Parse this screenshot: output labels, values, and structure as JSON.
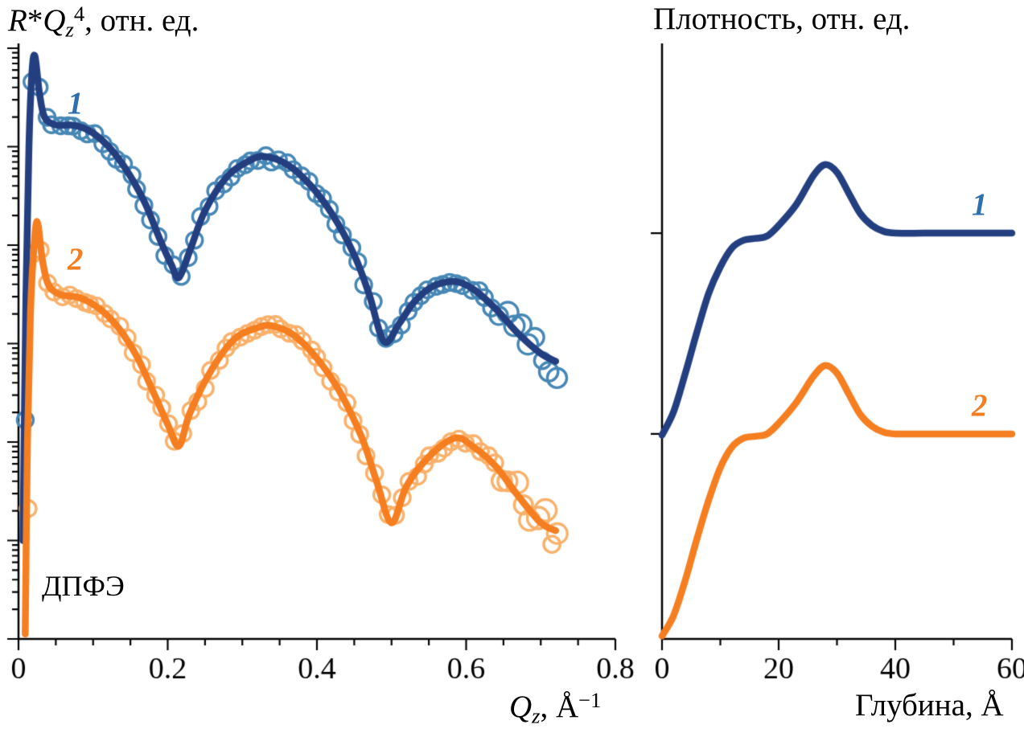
{
  "titles": {
    "left_y": {
      "r": "R",
      "star": "*",
      "q": "Q",
      "sub": "z",
      "sup": "4",
      "rest": ", отн. ед."
    },
    "left_x": {
      "q": "Q",
      "sub": "z",
      "rest": ", Å",
      "sup": "−1"
    },
    "right_y": "Плотность, отн. ед.",
    "right_x": "Глубина, Å"
  },
  "colors": {
    "axis": "#000000",
    "navy_line": "#243f80",
    "orange_line": "#f57e20",
    "blue_marker": "#4787b5",
    "orange_marker": "#f9b16b",
    "label_blue": "#2e6fad",
    "label_orange": "#f57e20"
  },
  "chart_data": [
    {
      "type": "line",
      "panel": "reflectivity",
      "title": "",
      "y_label": "R*Qz4, отн. ед.",
      "x_label": "Qz, Å−1",
      "annotation": "ДПФЭ",
      "y_axis": {
        "scale": "log10",
        "range": [
          0,
          6
        ],
        "tick_labels_shown": false
      },
      "x_axis": {
        "range": [
          0,
          0.8
        ],
        "ticks": [
          0,
          0.2,
          0.4,
          0.6,
          0.8
        ],
        "tick_labels": [
          "0",
          "0.2",
          "0.4",
          "0.6",
          "0.8"
        ],
        "minor_tick_step": 0.05
      },
      "marker_step": 0.0095,
      "marker_radius": 10,
      "marker_stroke": 3.4,
      "marker_jitter": 0.035,
      "tail_start": 0.62,
      "tail_jitter_slope": 1.5,
      "marker_x_end": 0.728,
      "series": [
        {
          "name": "1",
          "role": "experimental points + model fit",
          "line_color": "#243f80",
          "marker_color": "#4787b5",
          "marker_x_start": 0.008,
          "x": [
            0.006,
            0.01,
            0.014,
            0.018,
            0.022,
            0.028,
            0.035,
            0.05,
            0.07,
            0.09,
            0.11,
            0.13,
            0.15,
            0.17,
            0.19,
            0.205,
            0.215,
            0.23,
            0.25,
            0.28,
            0.31,
            0.33,
            0.36,
            0.39,
            0.42,
            0.45,
            0.47,
            0.49,
            0.51,
            0.53,
            0.555,
            0.585,
            0.61,
            0.64,
            0.67,
            0.7,
            0.72
          ],
          "y": [
            1.0,
            3.5,
            5.0,
            5.75,
            5.92,
            5.55,
            5.3,
            5.22,
            5.22,
            5.18,
            5.08,
            4.92,
            4.7,
            4.42,
            4.05,
            3.8,
            3.67,
            3.95,
            4.35,
            4.7,
            4.86,
            4.9,
            4.82,
            4.62,
            4.32,
            3.9,
            3.5,
            3.02,
            3.2,
            3.42,
            3.58,
            3.63,
            3.55,
            3.35,
            3.1,
            2.9,
            2.82
          ]
        },
        {
          "name": "2",
          "role": "experimental points + model fit",
          "line_color": "#f57e20",
          "marker_color": "#f9b16b",
          "marker_x_start": 0.011,
          "x": [
            0.009,
            0.012,
            0.016,
            0.02,
            0.025,
            0.032,
            0.04,
            0.055,
            0.08,
            0.1,
            0.12,
            0.14,
            0.16,
            0.18,
            0.2,
            0.215,
            0.23,
            0.26,
            0.29,
            0.32,
            0.34,
            0.37,
            0.4,
            0.43,
            0.46,
            0.48,
            0.5,
            0.52,
            0.55,
            0.585,
            0.61,
            0.64,
            0.67,
            0.7,
            0.72
          ],
          "y": [
            0.05,
            2.0,
            3.3,
            3.9,
            4.24,
            3.85,
            3.6,
            3.5,
            3.47,
            3.4,
            3.28,
            3.1,
            2.85,
            2.52,
            2.18,
            1.96,
            2.3,
            2.75,
            3.05,
            3.16,
            3.18,
            3.08,
            2.85,
            2.52,
            2.05,
            1.6,
            1.18,
            1.55,
            1.85,
            2.04,
            1.95,
            1.75,
            1.45,
            1.18,
            1.1
          ]
        }
      ],
      "curve_labels": [
        {
          "text": "1",
          "color": "#2e6fad"
        },
        {
          "text": "2",
          "color": "#f57e20"
        }
      ]
    },
    {
      "type": "line",
      "panel": "density-profile",
      "title": "",
      "y_label": "Плотность, отн. ед.",
      "x_label": "Глубина, Å",
      "y_axis": {
        "scale": "linear",
        "range": [
          0,
          1
        ],
        "ticks": [
          0.347,
          0.687
        ],
        "tick_labels_shown": false
      },
      "x_axis": {
        "range": [
          0,
          60
        ],
        "ticks": [
          0,
          20,
          40,
          60
        ],
        "tick_labels": [
          "0",
          "20",
          "40",
          "60"
        ],
        "minor_tick_step": 10
      },
      "series": [
        {
          "name": "1",
          "role": "density profile",
          "line_color": "#243f80",
          "marker_color": null,
          "x": [
            0,
            2,
            4,
            6,
            8,
            10,
            12,
            14,
            16,
            18,
            20,
            23,
            26,
            28,
            30,
            32,
            34,
            36,
            38,
            40,
            45,
            50,
            60
          ],
          "y": [
            0.345,
            0.385,
            0.45,
            0.52,
            0.585,
            0.63,
            0.662,
            0.675,
            0.678,
            0.682,
            0.7,
            0.735,
            0.785,
            0.803,
            0.79,
            0.755,
            0.72,
            0.7,
            0.69,
            0.687,
            0.687,
            0.687,
            0.687
          ]
        },
        {
          "name": "2",
          "role": "density profile",
          "line_color": "#f57e20",
          "marker_color": null,
          "x": [
            0,
            2,
            4,
            6,
            8,
            10,
            12,
            14,
            16,
            18,
            20,
            23,
            26,
            28,
            30,
            32,
            34,
            36,
            38,
            40,
            45,
            50,
            60
          ],
          "y": [
            0.005,
            0.04,
            0.1,
            0.17,
            0.235,
            0.29,
            0.325,
            0.34,
            0.343,
            0.347,
            0.365,
            0.4,
            0.445,
            0.463,
            0.45,
            0.415,
            0.38,
            0.36,
            0.35,
            0.347,
            0.347,
            0.347,
            0.347
          ]
        }
      ],
      "curve_labels": [
        {
          "text": "1",
          "color": "#2e6fad"
        },
        {
          "text": "2",
          "color": "#f57e20"
        }
      ]
    }
  ]
}
